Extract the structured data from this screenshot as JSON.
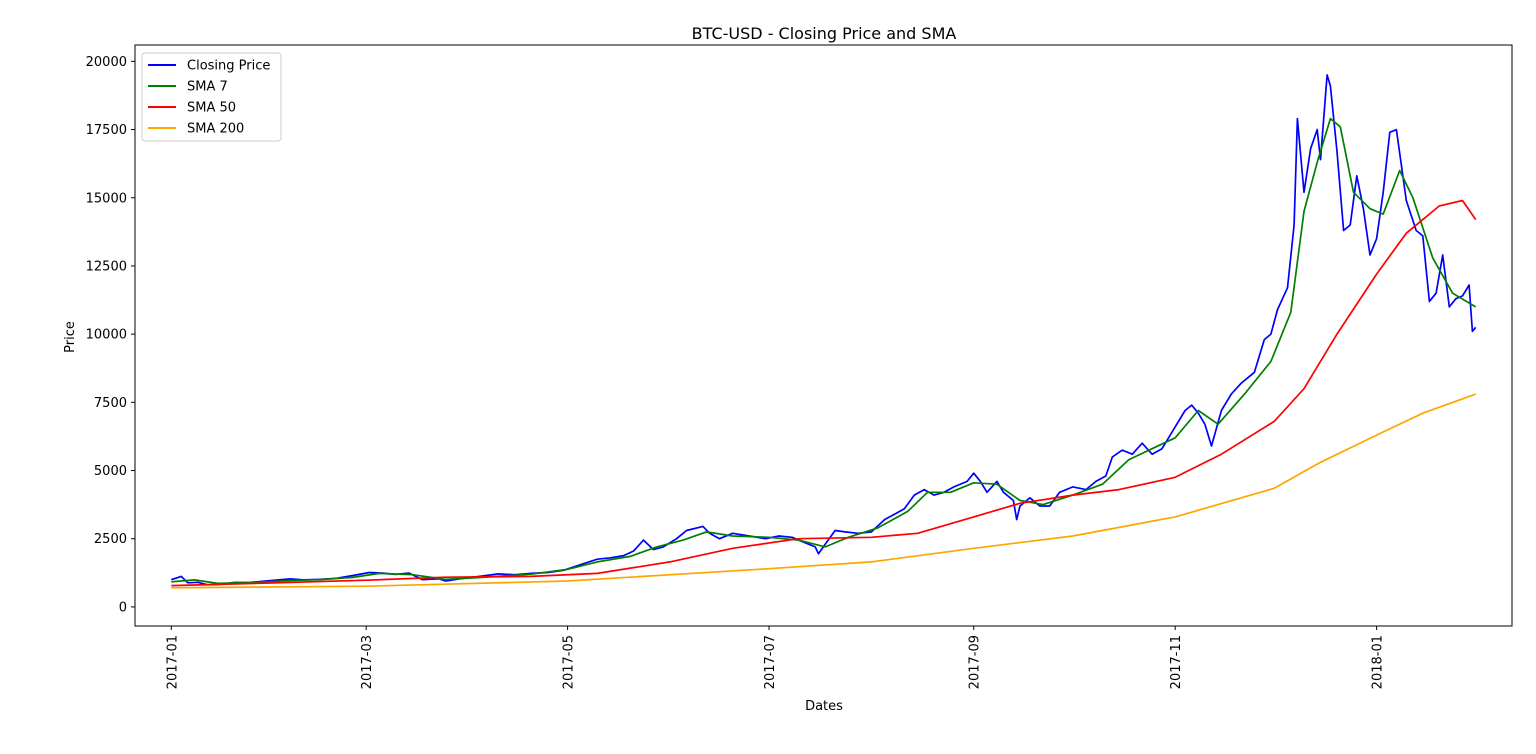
{
  "chart_data": {
    "type": "line",
    "title": "BTC-USD - Closing Price and SMA",
    "xlabel": "Dates",
    "ylabel": "Price",
    "xlim": [
      "2016-12-21",
      "2018-02-11"
    ],
    "ylim": [
      -700,
      20600
    ],
    "x_ticks": [
      "2017-01",
      "2017-03",
      "2017-05",
      "2017-07",
      "2017-09",
      "2017-11",
      "2018-01"
    ],
    "y_ticks": [
      0,
      2500,
      5000,
      7500,
      10000,
      12500,
      15000,
      17500,
      20000
    ],
    "grid": false,
    "legend_position": "top-left",
    "series": [
      {
        "name": "Closing Price",
        "color": "#0000ff",
        "points": [
          [
            "2017-01-01",
            998
          ],
          [
            "2017-01-04",
            1120
          ],
          [
            "2017-01-06",
            885
          ],
          [
            "2017-01-09",
            902
          ],
          [
            "2017-01-12",
            810
          ],
          [
            "2017-01-16",
            830
          ],
          [
            "2017-01-20",
            895
          ],
          [
            "2017-01-25",
            900
          ],
          [
            "2017-01-31",
            965
          ],
          [
            "2017-02-06",
            1025
          ],
          [
            "2017-02-10",
            990
          ],
          [
            "2017-02-15",
            1010
          ],
          [
            "2017-02-20",
            1050
          ],
          [
            "2017-02-25",
            1150
          ],
          [
            "2017-03-02",
            1260
          ],
          [
            "2017-03-06",
            1240
          ],
          [
            "2017-03-10",
            1190
          ],
          [
            "2017-03-14",
            1240
          ],
          [
            "2017-03-18",
            1000
          ],
          [
            "2017-03-23",
            1030
          ],
          [
            "2017-03-25",
            950
          ],
          [
            "2017-03-30",
            1040
          ],
          [
            "2017-04-05",
            1130
          ],
          [
            "2017-04-10",
            1210
          ],
          [
            "2017-04-15",
            1180
          ],
          [
            "2017-04-20",
            1230
          ],
          [
            "2017-04-25",
            1260
          ],
          [
            "2017-04-30",
            1350
          ],
          [
            "2017-05-05",
            1550
          ],
          [
            "2017-05-10",
            1750
          ],
          [
            "2017-05-14",
            1800
          ],
          [
            "2017-05-18",
            1880
          ],
          [
            "2017-05-21",
            2050
          ],
          [
            "2017-05-24",
            2450
          ],
          [
            "2017-05-27",
            2100
          ],
          [
            "2017-05-30",
            2200
          ],
          [
            "2017-06-03",
            2500
          ],
          [
            "2017-06-06",
            2800
          ],
          [
            "2017-06-11",
            2950
          ],
          [
            "2017-06-13",
            2700
          ],
          [
            "2017-06-16",
            2500
          ],
          [
            "2017-06-20",
            2700
          ],
          [
            "2017-06-25",
            2600
          ],
          [
            "2017-06-30",
            2500
          ],
          [
            "2017-07-04",
            2600
          ],
          [
            "2017-07-08",
            2550
          ],
          [
            "2017-07-12",
            2350
          ],
          [
            "2017-07-15",
            2200
          ],
          [
            "2017-07-16",
            1950
          ],
          [
            "2017-07-18",
            2300
          ],
          [
            "2017-07-21",
            2800
          ],
          [
            "2017-07-24",
            2750
          ],
          [
            "2017-07-28",
            2700
          ],
          [
            "2017-08-01",
            2750
          ],
          [
            "2017-08-05",
            3200
          ],
          [
            "2017-08-08",
            3400
          ],
          [
            "2017-08-11",
            3600
          ],
          [
            "2017-08-14",
            4100
          ],
          [
            "2017-08-17",
            4300
          ],
          [
            "2017-08-20",
            4100
          ],
          [
            "2017-08-23",
            4200
          ],
          [
            "2017-08-26",
            4400
          ],
          [
            "2017-08-30",
            4600
          ],
          [
            "2017-09-01",
            4900
          ],
          [
            "2017-09-03",
            4600
          ],
          [
            "2017-09-05",
            4200
          ],
          [
            "2017-09-08",
            4600
          ],
          [
            "2017-09-10",
            4200
          ],
          [
            "2017-09-13",
            3900
          ],
          [
            "2017-09-14",
            3200
          ],
          [
            "2017-09-15",
            3700
          ],
          [
            "2017-09-18",
            4000
          ],
          [
            "2017-09-21",
            3700
          ],
          [
            "2017-09-24",
            3700
          ],
          [
            "2017-09-27",
            4200
          ],
          [
            "2017-10-01",
            4400
          ],
          [
            "2017-10-05",
            4300
          ],
          [
            "2017-10-08",
            4600
          ],
          [
            "2017-10-11",
            4800
          ],
          [
            "2017-10-13",
            5500
          ],
          [
            "2017-10-16",
            5750
          ],
          [
            "2017-10-19",
            5600
          ],
          [
            "2017-10-22",
            6000
          ],
          [
            "2017-10-25",
            5600
          ],
          [
            "2017-10-28",
            5800
          ],
          [
            "2017-10-31",
            6400
          ],
          [
            "2017-11-04",
            7200
          ],
          [
            "2017-11-06",
            7400
          ],
          [
            "2017-11-08",
            7100
          ],
          [
            "2017-11-10",
            6700
          ],
          [
            "2017-11-12",
            5900
          ],
          [
            "2017-11-15",
            7200
          ],
          [
            "2017-11-18",
            7800
          ],
          [
            "2017-11-21",
            8200
          ],
          [
            "2017-11-25",
            8600
          ],
          [
            "2017-11-28",
            9800
          ],
          [
            "2017-11-30",
            10000
          ],
          [
            "2017-12-02",
            10900
          ],
          [
            "2017-12-05",
            11700
          ],
          [
            "2017-12-07",
            14000
          ],
          [
            "2017-12-08",
            17900
          ],
          [
            "2017-12-10",
            15200
          ],
          [
            "2017-12-12",
            16800
          ],
          [
            "2017-12-14",
            17500
          ],
          [
            "2017-12-15",
            16400
          ],
          [
            "2017-12-17",
            19500
          ],
          [
            "2017-12-18",
            19100
          ],
          [
            "2017-12-20",
            16700
          ],
          [
            "2017-12-22",
            13800
          ],
          [
            "2017-12-24",
            14000
          ],
          [
            "2017-12-26",
            15800
          ],
          [
            "2017-12-28",
            14600
          ],
          [
            "2017-12-30",
            12900
          ],
          [
            "2018-01-01",
            13500
          ],
          [
            "2018-01-03",
            15200
          ],
          [
            "2018-01-05",
            17400
          ],
          [
            "2018-01-07",
            17500
          ],
          [
            "2018-01-10",
            14900
          ],
          [
            "2018-01-13",
            13800
          ],
          [
            "2018-01-15",
            13600
          ],
          [
            "2018-01-17",
            11200
          ],
          [
            "2018-01-19",
            11500
          ],
          [
            "2018-01-21",
            12900
          ],
          [
            "2018-01-23",
            11000
          ],
          [
            "2018-01-25",
            11300
          ],
          [
            "2018-01-27",
            11400
          ],
          [
            "2018-01-29",
            11800
          ],
          [
            "2018-01-30",
            10100
          ],
          [
            "2018-01-31",
            10250
          ]
        ]
      },
      {
        "name": "SMA 7",
        "color": "#008000",
        "points": [
          [
            "2017-01-01",
            920
          ],
          [
            "2017-01-08",
            990
          ],
          [
            "2017-01-15",
            860
          ],
          [
            "2017-01-25",
            890
          ],
          [
            "2017-02-05",
            960
          ],
          [
            "2017-02-15",
            1000
          ],
          [
            "2017-02-25",
            1080
          ],
          [
            "2017-03-05",
            1230
          ],
          [
            "2017-03-15",
            1180
          ],
          [
            "2017-03-25",
            1010
          ],
          [
            "2017-04-05",
            1080
          ],
          [
            "2017-04-20",
            1200
          ],
          [
            "2017-05-01",
            1380
          ],
          [
            "2017-05-10",
            1650
          ],
          [
            "2017-05-20",
            1850
          ],
          [
            "2017-05-28",
            2200
          ],
          [
            "2017-06-05",
            2450
          ],
          [
            "2017-06-12",
            2750
          ],
          [
            "2017-06-20",
            2600
          ],
          [
            "2017-07-01",
            2550
          ],
          [
            "2017-07-10",
            2450
          ],
          [
            "2017-07-18",
            2200
          ],
          [
            "2017-07-25",
            2550
          ],
          [
            "2017-08-03",
            2900
          ],
          [
            "2017-08-12",
            3500
          ],
          [
            "2017-08-18",
            4200
          ],
          [
            "2017-08-25",
            4200
          ],
          [
            "2017-09-01",
            4550
          ],
          [
            "2017-09-08",
            4500
          ],
          [
            "2017-09-15",
            3900
          ],
          [
            "2017-09-22",
            3750
          ],
          [
            "2017-10-01",
            4100
          ],
          [
            "2017-10-10",
            4500
          ],
          [
            "2017-10-18",
            5400
          ],
          [
            "2017-10-25",
            5800
          ],
          [
            "2017-11-01",
            6200
          ],
          [
            "2017-11-08",
            7200
          ],
          [
            "2017-11-14",
            6700
          ],
          [
            "2017-11-22",
            7800
          ],
          [
            "2017-11-30",
            9000
          ],
          [
            "2017-12-06",
            10800
          ],
          [
            "2017-12-10",
            14500
          ],
          [
            "2017-12-14",
            16300
          ],
          [
            "2017-12-18",
            17900
          ],
          [
            "2017-12-21",
            17600
          ],
          [
            "2017-12-25",
            15200
          ],
          [
            "2017-12-30",
            14600
          ],
          [
            "2018-01-03",
            14400
          ],
          [
            "2018-01-08",
            16000
          ],
          [
            "2018-01-12",
            15000
          ],
          [
            "2018-01-18",
            12800
          ],
          [
            "2018-01-24",
            11500
          ],
          [
            "2018-01-31",
            11000
          ]
        ]
      },
      {
        "name": "SMA 50",
        "color": "#ff0000",
        "points": [
          [
            "2017-01-01",
            780
          ],
          [
            "2017-02-01",
            880
          ],
          [
            "2017-03-01",
            980
          ],
          [
            "2017-03-25",
            1090
          ],
          [
            "2017-04-20",
            1120
          ],
          [
            "2017-05-10",
            1230
          ],
          [
            "2017-06-01",
            1650
          ],
          [
            "2017-06-20",
            2150
          ],
          [
            "2017-07-10",
            2500
          ],
          [
            "2017-08-01",
            2550
          ],
          [
            "2017-08-15",
            2700
          ],
          [
            "2017-09-01",
            3300
          ],
          [
            "2017-09-15",
            3800
          ],
          [
            "2017-10-01",
            4100
          ],
          [
            "2017-10-15",
            4300
          ],
          [
            "2017-11-01",
            4750
          ],
          [
            "2017-11-15",
            5600
          ],
          [
            "2017-12-01",
            6800
          ],
          [
            "2017-12-10",
            8000
          ],
          [
            "2017-12-20",
            10000
          ],
          [
            "2018-01-01",
            12200
          ],
          [
            "2018-01-10",
            13700
          ],
          [
            "2018-01-20",
            14700
          ],
          [
            "2018-01-27",
            14900
          ],
          [
            "2018-01-31",
            14200
          ]
        ]
      },
      {
        "name": "SMA 200",
        "color": "#ffa500",
        "points": [
          [
            "2017-01-01",
            700
          ],
          [
            "2017-03-01",
            760
          ],
          [
            "2017-05-01",
            950
          ],
          [
            "2017-07-01",
            1400
          ],
          [
            "2017-08-01",
            1650
          ],
          [
            "2017-09-01",
            2150
          ],
          [
            "2017-10-01",
            2600
          ],
          [
            "2017-11-01",
            3300
          ],
          [
            "2017-12-01",
            4350
          ],
          [
            "2017-12-15",
            5300
          ],
          [
            "2018-01-01",
            6300
          ],
          [
            "2018-01-15",
            7100
          ],
          [
            "2018-01-31",
            7800
          ]
        ]
      }
    ]
  }
}
